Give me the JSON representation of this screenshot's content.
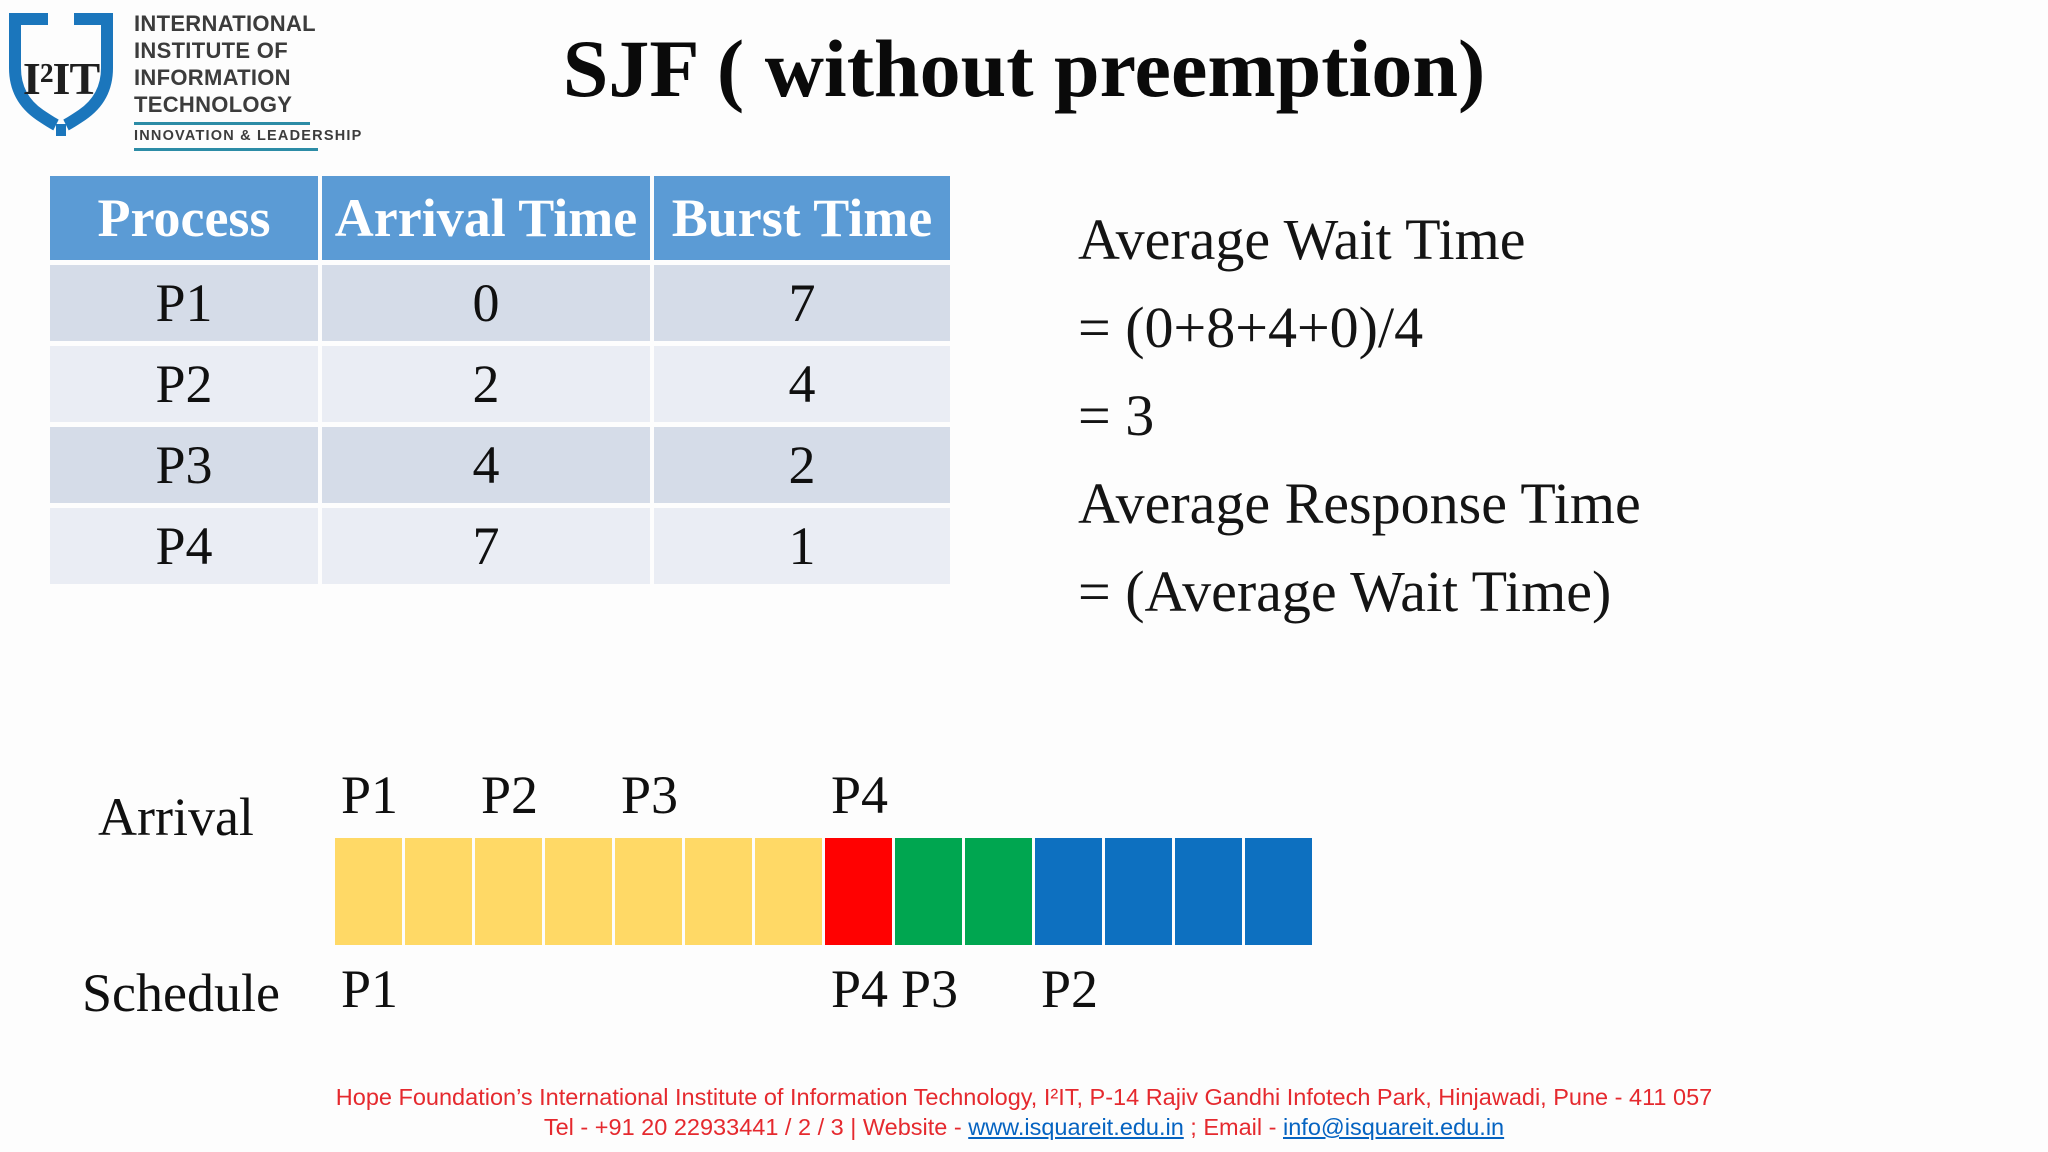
{
  "logo": {
    "shield_text": "I²IT",
    "org_lines": [
      "INTERNATIONAL",
      "INSTITUTE OF",
      "INFORMATION",
      "TECHNOLOGY"
    ],
    "tagline": "INNOVATION & LEADERSHIP"
  },
  "title": "SJF ( without preemption)",
  "process_table": {
    "headers": [
      "Process",
      "Arrival Time",
      "Burst Time"
    ],
    "rows": [
      [
        "P1",
        "0",
        "7"
      ],
      [
        "P2",
        "2",
        "4"
      ],
      [
        "P3",
        "4",
        "2"
      ],
      [
        "P4",
        "7",
        "1"
      ]
    ]
  },
  "calc": {
    "lines": [
      "Average Wait Time",
      "= (0+8+4+0)/4",
      "= 3",
      "Average Response Time",
      "= (Average Wait Time)"
    ]
  },
  "chart_data": {
    "type": "bar",
    "title": "SJF (non-preemptive) schedule timeline",
    "x_unit": "time",
    "total_cells": 14,
    "arrival_label": "Arrival",
    "schedule_label": "Schedule",
    "arrival_markers": [
      {
        "label": "P1",
        "time": 0
      },
      {
        "label": "P2",
        "time": 2
      },
      {
        "label": "P3",
        "time": 4
      },
      {
        "label": "P4",
        "time": 7
      }
    ],
    "schedule_markers": [
      {
        "label": "P1",
        "time": 0
      },
      {
        "label": "P4",
        "time": 7
      },
      {
        "label": "P3",
        "time": 8
      },
      {
        "label": "P2",
        "time": 10
      }
    ],
    "segments": [
      {
        "process": "P1",
        "start": 0,
        "length": 7,
        "color": "#FFD966"
      },
      {
        "process": "P4",
        "start": 7,
        "length": 1,
        "color": "#FF0101"
      },
      {
        "process": "P3",
        "start": 8,
        "length": 2,
        "color": "#00A650"
      },
      {
        "process": "P2",
        "start": 10,
        "length": 4,
        "color": "#0D70C0"
      }
    ]
  },
  "footer": {
    "line1": "Hope Foundation’s International Institute of Information Technology, I²IT, P-14 Rajiv Gandhi Infotech Park, Hinjawadi, Pune - 411 057",
    "line2_prefix": "Tel - +91 20 22933441 / 2 / 3  |  Website - ",
    "website": "www.isquareit.edu.in",
    "line2_mid": " ; Email - ",
    "email": "info@isquareit.edu.in"
  },
  "colors": {
    "headerBlue": "#5B9BD5",
    "rowDark": "#D5DCE8",
    "rowLight": "#EAEDF4",
    "footerRed": "#E5292E",
    "linkBlue": "#0563C1",
    "teal": "#2C8CA6",
    "shieldBlue": "#1B76BC",
    "logoInk": "#3C3C3C"
  }
}
